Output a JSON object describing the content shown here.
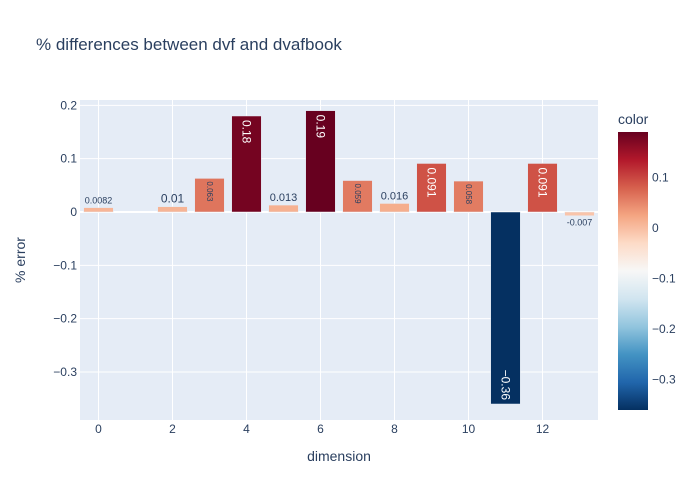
{
  "chart_data": {
    "type": "bar",
    "title": "% differences between dvf and dvafbook",
    "xlabel": "dimension",
    "ylabel": "% error",
    "x": [
      0,
      1,
      2,
      3,
      4,
      5,
      6,
      7,
      8,
      9,
      10,
      11,
      12,
      13
    ],
    "values": [
      0.0082,
      0.0,
      0.01,
      0.063,
      0.18,
      0.013,
      0.19,
      0.059,
      0.016,
      0.091,
      0.058,
      -0.36,
      0.091,
      -0.007
    ],
    "labels": [
      "0.0082",
      "",
      "0.01",
      "0.063",
      "0.18",
      "0.013",
      "0.19",
      "0.059",
      "0.016",
      "0.091",
      "0.058",
      "−0.36",
      "0.091",
      "-0.007"
    ],
    "xlim": [
      -0.5,
      13.5
    ],
    "ylim": [
      -0.39,
      0.21
    ],
    "xticks": [
      0,
      2,
      4,
      6,
      8,
      10,
      12
    ],
    "xtick_labels": [
      "0",
      "2",
      "4",
      "6",
      "8",
      "10",
      "12"
    ],
    "yticks": [
      -0.3,
      -0.2,
      -0.1,
      0,
      0.1,
      0.2
    ],
    "ytick_labels": [
      "−0.3",
      "−0.2",
      "−0.1",
      "0",
      "0.1",
      "0.2"
    ],
    "grid": true,
    "colorbar": {
      "title": "color",
      "range": [
        -0.36,
        0.19
      ],
      "ticks": [
        -0.3,
        -0.2,
        -0.1,
        0,
        0.1
      ],
      "tick_labels": [
        "−0.3",
        "−0.2",
        "−0.1",
        "0",
        "0.1"
      ],
      "colorscale": "RdBu_r"
    },
    "colors": {
      "plot_bg": "#e5ecf6",
      "grid": "#ffffff",
      "text": "#2a3f5f"
    }
  }
}
